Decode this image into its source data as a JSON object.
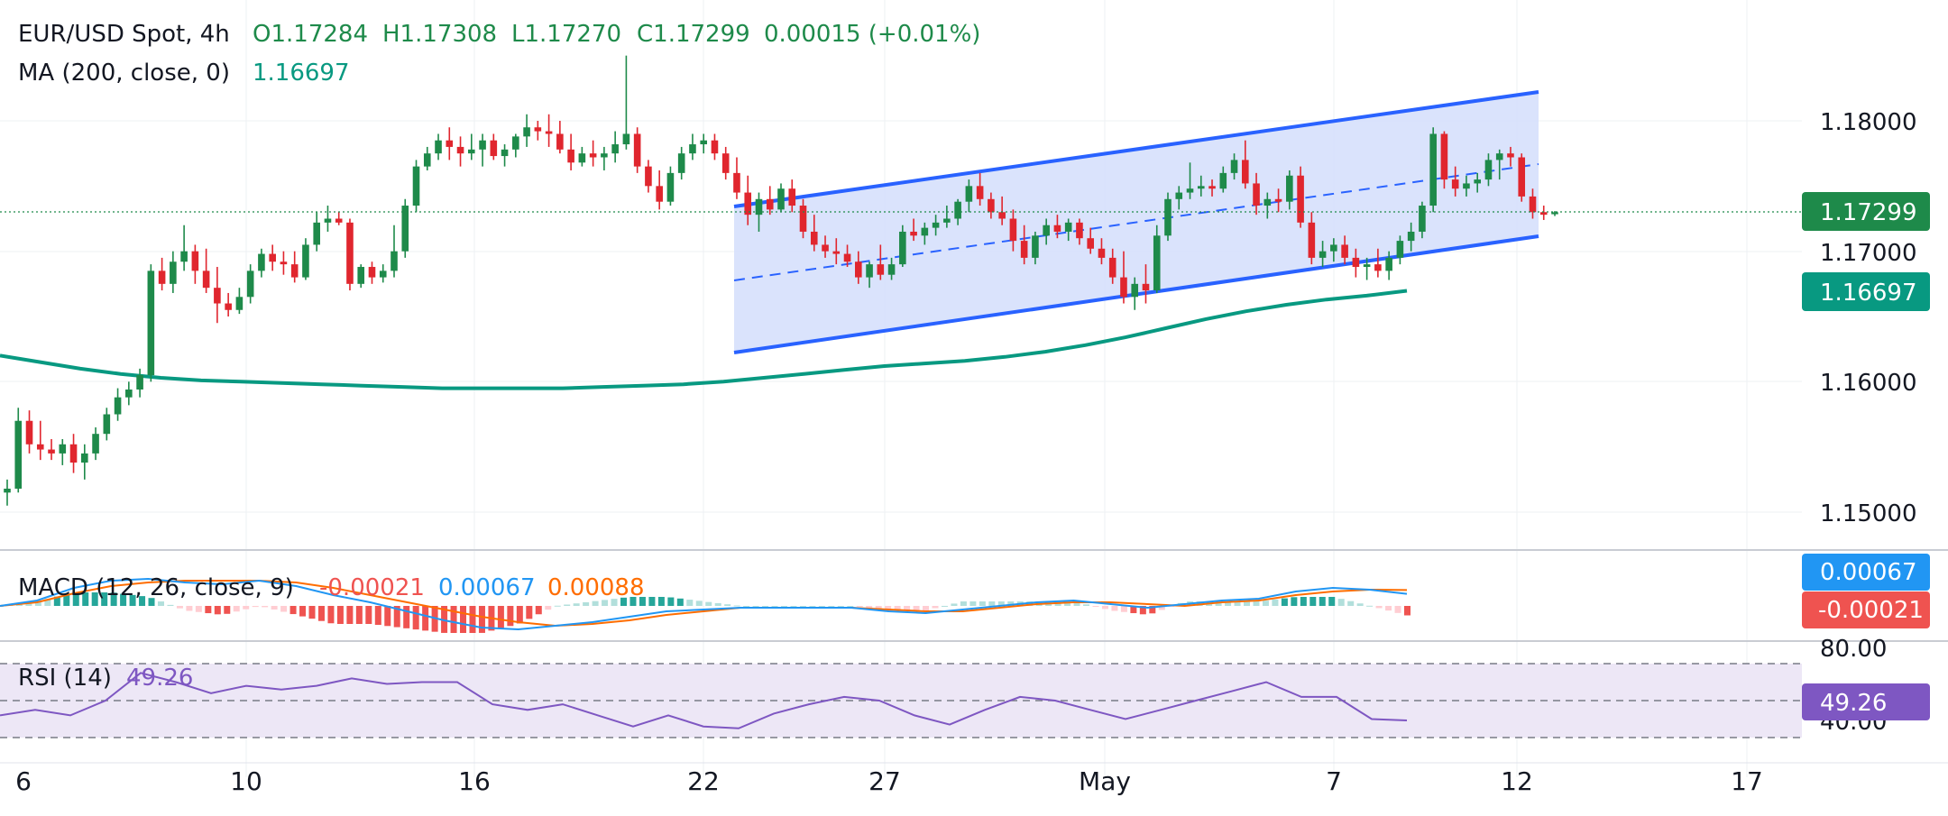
{
  "header": {
    "symbol": "EUR/USD Spot, 4h",
    "open": "O1.17284",
    "high": "H1.17308",
    "low": "L1.17270",
    "close": "C1.17299",
    "change": "0.00015 (+0.01%)",
    "ma_label": "MA (200, close, 0)",
    "ma_value": "1.16697"
  },
  "price_axis": {
    "labels": [
      "1.18000",
      "1.17000",
      "1.16000",
      "1.15000"
    ],
    "last_price_tag": "1.17299",
    "ma_tag": "1.16697"
  },
  "macd": {
    "label": "MACD (12, 26, close, 9)",
    "histogram": "-0.00021",
    "macd_value": "0.00067",
    "signal_value": "0.00088",
    "macd_tag": "0.00067",
    "hist_tag": "-0.00021"
  },
  "rsi": {
    "label": "RSI (14)",
    "value": "49.26",
    "tag": "49.26",
    "upper_label": "80.00",
    "lower_label": "40.00"
  },
  "time_axis": {
    "labels": [
      "6",
      "10",
      "16",
      "22",
      "27",
      "May",
      "7",
      "12",
      "17"
    ]
  },
  "colors": {
    "up": "#26a69a",
    "down": "#ef5350",
    "up_dark": "#1e8a4a",
    "down_dark": "#e0262e",
    "ma": "#089981",
    "channel": "#2962ff",
    "channel_fill": "#d4defc",
    "macd_line": "#2196f3",
    "signal_line": "#ff6d00",
    "rsi_line": "#7e57c2",
    "rsi_band": "#ede7f6"
  },
  "chart_data": {
    "type": "candlestick",
    "symbol": "EUR/USD Spot",
    "interval": "4h",
    "ylim": [
      1.1445,
      1.1855
    ],
    "x_ticks": [
      "6",
      "10",
      "16",
      "22",
      "27",
      "May",
      "7",
      "12",
      "17"
    ],
    "candles_ohlc": [
      [
        1.1515,
        1.1525,
        1.1505,
        1.1518
      ],
      [
        1.1518,
        1.158,
        1.1515,
        1.157
      ],
      [
        1.157,
        1.1578,
        1.1545,
        1.1552
      ],
      [
        1.1552,
        1.157,
        1.154,
        1.1548
      ],
      [
        1.1548,
        1.1556,
        1.154,
        1.1545
      ],
      [
        1.1545,
        1.1556,
        1.1536,
        1.1552
      ],
      [
        1.1552,
        1.156,
        1.153,
        1.1538
      ],
      [
        1.1538,
        1.1552,
        1.1525,
        1.1545
      ],
      [
        1.1545,
        1.1565,
        1.154,
        1.156
      ],
      [
        1.156,
        1.158,
        1.1555,
        1.1575
      ],
      [
        1.1575,
        1.1595,
        1.157,
        1.1588
      ],
      [
        1.1588,
        1.16,
        1.1582,
        1.1594
      ],
      [
        1.1594,
        1.161,
        1.1588,
        1.1605
      ],
      [
        1.1605,
        1.169,
        1.16,
        1.1685
      ],
      [
        1.1685,
        1.1695,
        1.167,
        1.1675
      ],
      [
        1.1675,
        1.17,
        1.1668,
        1.1692
      ],
      [
        1.1692,
        1.172,
        1.1685,
        1.17
      ],
      [
        1.17,
        1.1705,
        1.1675,
        1.1685
      ],
      [
        1.1685,
        1.1702,
        1.1668,
        1.1672
      ],
      [
        1.1672,
        1.1688,
        1.1645,
        1.166
      ],
      [
        1.166,
        1.1668,
        1.165,
        1.1655
      ],
      [
        1.1655,
        1.1672,
        1.1652,
        1.1665
      ],
      [
        1.1665,
        1.169,
        1.166,
        1.1685
      ],
      [
        1.1685,
        1.1702,
        1.168,
        1.1698
      ],
      [
        1.1698,
        1.1705,
        1.1685,
        1.1692
      ],
      [
        1.1692,
        1.17,
        1.1682,
        1.169
      ],
      [
        1.169,
        1.17,
        1.1676,
        1.168
      ],
      [
        1.168,
        1.171,
        1.1678,
        1.1705
      ],
      [
        1.1705,
        1.173,
        1.17,
        1.1722
      ],
      [
        1.1722,
        1.1735,
        1.1715,
        1.1725
      ],
      [
        1.1725,
        1.173,
        1.172,
        1.1722
      ],
      [
        1.1722,
        1.1725,
        1.167,
        1.1675
      ],
      [
        1.1675,
        1.169,
        1.1672,
        1.1688
      ],
      [
        1.1688,
        1.1692,
        1.1675,
        1.168
      ],
      [
        1.168,
        1.169,
        1.1676,
        1.1685
      ],
      [
        1.1685,
        1.172,
        1.168,
        1.17
      ],
      [
        1.17,
        1.174,
        1.1695,
        1.1735
      ],
      [
        1.1735,
        1.177,
        1.173,
        1.1765
      ],
      [
        1.1765,
        1.178,
        1.1762,
        1.1775
      ],
      [
        1.1775,
        1.179,
        1.177,
        1.1785
      ],
      [
        1.1785,
        1.1795,
        1.177,
        1.178
      ],
      [
        1.178,
        1.1788,
        1.1765,
        1.1775
      ],
      [
        1.1775,
        1.179,
        1.177,
        1.1778
      ],
      [
        1.1778,
        1.179,
        1.1765,
        1.1785
      ],
      [
        1.1785,
        1.179,
        1.177,
        1.1773
      ],
      [
        1.1773,
        1.1782,
        1.1765,
        1.1778
      ],
      [
        1.1778,
        1.179,
        1.1772,
        1.1788
      ],
      [
        1.1788,
        1.1805,
        1.178,
        1.1795
      ],
      [
        1.1795,
        1.18,
        1.1785,
        1.1792
      ],
      [
        1.1792,
        1.1805,
        1.178,
        1.179
      ],
      [
        1.179,
        1.18,
        1.1775,
        1.1778
      ],
      [
        1.1778,
        1.179,
        1.1762,
        1.1768
      ],
      [
        1.1768,
        1.178,
        1.1765,
        1.1775
      ],
      [
        1.1775,
        1.1785,
        1.1765,
        1.1772
      ],
      [
        1.1772,
        1.178,
        1.1762,
        1.1775
      ],
      [
        1.1775,
        1.1792,
        1.1768,
        1.1782
      ],
      [
        1.1782,
        1.185,
        1.1778,
        1.179
      ],
      [
        1.179,
        1.1795,
        1.176,
        1.1765
      ],
      [
        1.1765,
        1.177,
        1.1745,
        1.175
      ],
      [
        1.175,
        1.1762,
        1.1732,
        1.1738
      ],
      [
        1.1738,
        1.1765,
        1.1735,
        1.176
      ],
      [
        1.176,
        1.178,
        1.1755,
        1.1775
      ],
      [
        1.1775,
        1.179,
        1.177,
        1.1782
      ],
      [
        1.1782,
        1.179,
        1.1775,
        1.1785
      ],
      [
        1.1785,
        1.179,
        1.177,
        1.1775
      ],
      [
        1.1775,
        1.178,
        1.1755,
        1.176
      ],
      [
        1.176,
        1.1772,
        1.174,
        1.1745
      ],
      [
        1.1745,
        1.1758,
        1.172,
        1.1728
      ],
      [
        1.1728,
        1.1745,
        1.1715,
        1.174
      ],
      [
        1.174,
        1.175,
        1.1728,
        1.1732
      ],
      [
        1.1732,
        1.1752,
        1.173,
        1.1748
      ],
      [
        1.1748,
        1.1755,
        1.173,
        1.1735
      ],
      [
        1.1735,
        1.174,
        1.171,
        1.1715
      ],
      [
        1.1715,
        1.1728,
        1.17,
        1.1705
      ],
      [
        1.1705,
        1.1712,
        1.1695,
        1.17
      ],
      [
        1.17,
        1.171,
        1.169,
        1.1698
      ],
      [
        1.1698,
        1.1705,
        1.1688,
        1.1692
      ],
      [
        1.1692,
        1.17,
        1.1675,
        1.168
      ],
      [
        1.168,
        1.1692,
        1.1672,
        1.169
      ],
      [
        1.169,
        1.1705,
        1.1678,
        1.1682
      ],
      [
        1.1682,
        1.1695,
        1.1678,
        1.169
      ],
      [
        1.169,
        1.172,
        1.1688,
        1.1715
      ],
      [
        1.1715,
        1.1725,
        1.1708,
        1.1712
      ],
      [
        1.1712,
        1.1722,
        1.1705,
        1.1718
      ],
      [
        1.1718,
        1.1728,
        1.1712,
        1.1722
      ],
      [
        1.1722,
        1.1735,
        1.1718,
        1.1725
      ],
      [
        1.1725,
        1.174,
        1.172,
        1.1738
      ],
      [
        1.1738,
        1.1755,
        1.173,
        1.175
      ],
      [
        1.175,
        1.176,
        1.1735,
        1.174
      ],
      [
        1.174,
        1.1745,
        1.1725,
        1.173
      ],
      [
        1.173,
        1.1742,
        1.172,
        1.1725
      ],
      [
        1.1725,
        1.1732,
        1.17,
        1.1708
      ],
      [
        1.1708,
        1.172,
        1.169,
        1.1695
      ],
      [
        1.1695,
        1.1715,
        1.169,
        1.1712
      ],
      [
        1.1712,
        1.1725,
        1.1705,
        1.172
      ],
      [
        1.172,
        1.1728,
        1.171,
        1.1715
      ],
      [
        1.1715,
        1.1725,
        1.1708,
        1.1722
      ],
      [
        1.1722,
        1.1725,
        1.1705,
        1.171
      ],
      [
        1.171,
        1.1718,
        1.1698,
        1.1702
      ],
      [
        1.1702,
        1.171,
        1.169,
        1.1695
      ],
      [
        1.1695,
        1.1702,
        1.1675,
        1.168
      ],
      [
        1.168,
        1.17,
        1.166,
        1.1665
      ],
      [
        1.1665,
        1.168,
        1.1655,
        1.1675
      ],
      [
        1.1675,
        1.169,
        1.166,
        1.167
      ],
      [
        1.167,
        1.172,
        1.1668,
        1.1712
      ],
      [
        1.1712,
        1.1745,
        1.1708,
        1.174
      ],
      [
        1.174,
        1.175,
        1.1732,
        1.1745
      ],
      [
        1.1745,
        1.1768,
        1.174,
        1.1748
      ],
      [
        1.1748,
        1.1758,
        1.1742,
        1.175
      ],
      [
        1.175,
        1.1755,
        1.1742,
        1.1748
      ],
      [
        1.1748,
        1.1765,
        1.1745,
        1.176
      ],
      [
        1.176,
        1.1775,
        1.1755,
        1.177
      ],
      [
        1.177,
        1.1785,
        1.1748,
        1.1752
      ],
      [
        1.1752,
        1.176,
        1.1728,
        1.1735
      ],
      [
        1.1735,
        1.1745,
        1.1725,
        1.174
      ],
      [
        1.174,
        1.1748,
        1.173,
        1.1738
      ],
      [
        1.1738,
        1.1762,
        1.1732,
        1.1758
      ],
      [
        1.1758,
        1.1765,
        1.1718,
        1.1722
      ],
      [
        1.1722,
        1.173,
        1.169,
        1.1695
      ],
      [
        1.1695,
        1.1708,
        1.1688,
        1.17
      ],
      [
        1.17,
        1.171,
        1.1692,
        1.1705
      ],
      [
        1.1705,
        1.1712,
        1.169,
        1.1695
      ],
      [
        1.1695,
        1.1702,
        1.168,
        1.1688
      ],
      [
        1.1688,
        1.1695,
        1.1678,
        1.169
      ],
      [
        1.169,
        1.1702,
        1.168,
        1.1685
      ],
      [
        1.1685,
        1.17,
        1.1678,
        1.1695
      ],
      [
        1.1695,
        1.1712,
        1.169,
        1.1708
      ],
      [
        1.1708,
        1.1722,
        1.17,
        1.1715
      ],
      [
        1.1715,
        1.1738,
        1.171,
        1.1735
      ],
      [
        1.1735,
        1.1795,
        1.173,
        1.179
      ],
      [
        1.179,
        1.1792,
        1.1748,
        1.1755
      ],
      [
        1.1755,
        1.1765,
        1.1742,
        1.1748
      ],
      [
        1.1748,
        1.1758,
        1.1742,
        1.1752
      ],
      [
        1.1752,
        1.176,
        1.1745,
        1.1755
      ],
      [
        1.1755,
        1.1775,
        1.175,
        1.177
      ],
      [
        1.177,
        1.1778,
        1.1755,
        1.1775
      ],
      [
        1.1775,
        1.178,
        1.1765,
        1.1772
      ],
      [
        1.1772,
        1.1775,
        1.1738,
        1.1742
      ],
      [
        1.1742,
        1.1748,
        1.1725,
        1.173
      ],
      [
        1.173,
        1.1735,
        1.1724,
        1.1728
      ],
      [
        1.17284,
        1.17308,
        1.1727,
        1.17299
      ]
    ],
    "ma200": [
      1.162,
      1.1615,
      1.161,
      1.1606,
      1.1603,
      1.1601,
      1.16,
      1.1599,
      1.1598,
      1.1597,
      1.1596,
      1.1595,
      1.1595,
      1.1595,
      1.1595,
      1.1596,
      1.1597,
      1.1598,
      1.16,
      1.1603,
      1.1606,
      1.1609,
      1.1612,
      1.1614,
      1.1616,
      1.1619,
      1.1623,
      1.1628,
      1.1634,
      1.1641,
      1.1648,
      1.1654,
      1.1659,
      1.1663,
      1.1666,
      1.16697
    ],
    "channel": {
      "upper": [
        [
          1.1731,
          1.1822
        ]
      ],
      "middle": [
        [
          1.1684,
          1.1767
        ]
      ],
      "lower": [
        [
          1.1622,
          1.1708
        ]
      ],
      "start_candle": 92,
      "end_candle": 180
    },
    "macd_series": {
      "macd": [
        0.0,
        0.0003,
        0.001,
        0.0014,
        0.0015,
        0.0013,
        0.0012,
        0.0014,
        0.0011,
        0.0006,
        0.0002,
        -0.0003,
        -0.0008,
        -0.0012,
        -0.0013,
        -0.0011,
        -0.0009,
        -0.0006,
        -0.0003,
        -0.0002,
        -0.0001,
        -0.0001,
        -0.0001,
        -0.0001,
        -0.0003,
        -0.0004,
        -0.0002,
        0.0,
        0.0002,
        0.0003,
        0.0001,
        -0.0001,
        0.0001,
        0.0003,
        0.0004,
        0.0008,
        0.001,
        0.0009,
        0.00067
      ],
      "signal": [
        0.0,
        0.0002,
        0.0007,
        0.0011,
        0.0013,
        0.0014,
        0.0014,
        0.0014,
        0.0013,
        0.001,
        0.0006,
        0.0002,
        -0.0002,
        -0.0006,
        -0.0009,
        -0.0011,
        -0.001,
        -0.0008,
        -0.0005,
        -0.0003,
        -0.0001,
        -0.0001,
        -0.0001,
        -0.0001,
        -0.0002,
        -0.0003,
        -0.0003,
        -0.0001,
        0.0001,
        0.0002,
        0.0002,
        0.0001,
        0.0,
        0.0002,
        0.0003,
        0.0006,
        0.0008,
        0.0009,
        0.00088
      ]
    },
    "rsi_series": [
      52,
      55,
      52,
      60,
      75,
      70,
      64,
      68,
      66,
      68,
      72,
      69,
      70,
      70,
      58,
      55,
      58,
      52,
      46,
      52,
      46,
      45,
      53,
      58,
      62,
      60,
      52,
      47,
      55,
      62,
      60,
      55,
      50,
      55,
      60,
      65,
      70,
      62,
      62,
      50,
      49.26
    ],
    "rsi_levels": [
      80,
      40
    ]
  }
}
